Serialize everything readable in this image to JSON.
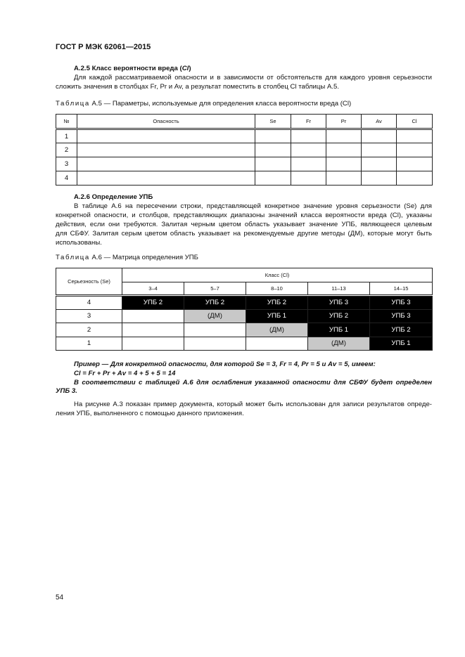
{
  "header": {
    "title": "ГОСТ Р МЭК 62061—2015"
  },
  "s25": {
    "heading": "А.2.5 Класс вероятности вреда (",
    "heading_sym": "Cl",
    "heading_end": ")",
    "p_line1": "Для каждой рассматриваемой опасности и в зависимости от обстоятельств для каждого уровня серьезности",
    "p_line2": "сложить значения в столбцах Fr, Pr и Av, а результат поместить в столбец Cl таблицы А.5."
  },
  "table_a5": {
    "caption_label": "Таблица",
    "caption": "А.5 — Параметры, используемые для определения класса вероятности вреда (Cl)",
    "headers": [
      "№",
      "Опасность",
      "Se",
      "Fr",
      "Pr",
      "Av",
      "Cl"
    ],
    "rows": [
      "1",
      "2",
      "3",
      "4"
    ]
  },
  "s26": {
    "heading": "А.2.6 Определение УПБ",
    "lines": [
      "В таблице А.6 на пересечении строки, представляющей конкретное значение уровня серьезности (Se) для",
      "конкретной опасности, и столбцов, представляющих диапазоны значений класса вероятности вреда (Cl), указаны",
      "действия, если они требуются. Залитая черным цветом область указывает значение УПБ, являющееся целевым",
      "для СБФУ. Залитая серым цветом область указывает на рекомендуемые другие методы (ДМ), которые могут быть",
      "использованы."
    ]
  },
  "table_a6": {
    "caption_label": "Таблица",
    "caption": "А.6 — Матрица определения УПБ",
    "row_header": "Серьезность (Se)",
    "col_group": "Класс (Cl)",
    "cols": [
      "3–4",
      "5–7",
      "8–10",
      "11–13",
      "14–15"
    ],
    "rows": [
      {
        "se": "4",
        "cells": [
          "УПБ 2",
          "УПБ 2",
          "УПБ 2",
          "УПБ 3",
          "УПБ 3"
        ]
      },
      {
        "se": "3",
        "cells": [
          "",
          "(ДМ)",
          "УПБ 1",
          "УПБ 2",
          "УПБ 3"
        ]
      },
      {
        "se": "2",
        "cells": [
          "",
          "",
          "(ДМ)",
          "УПБ 1",
          "УПБ 2"
        ]
      },
      {
        "se": "1",
        "cells": [
          "",
          "",
          "",
          "(ДМ)",
          "УПБ 1"
        ]
      }
    ],
    "colors": {
      "black": "#000000",
      "gray": "#c8c8c8"
    }
  },
  "example": {
    "line1": "Пример — Для конкретной опасности, для которой Se = 3, Fr = 4, Pr = 5 и Av = 5, имеем:",
    "line2": "Cl = Fr + Pr + Av = 4 + 5 + 5 = 14",
    "line3": "В соответствии с таблицей А.6 для ослабления указанной опасности для СБФУ будет определен",
    "line4": "УПБ 3."
  },
  "closing": {
    "line1": "На рисунке А.3 показан пример документа, который может быть использован для записи результатов опреде-",
    "line2": "ления УПБ, выполненного с помощью данного приложения."
  },
  "footer": {
    "page_number": "54"
  }
}
